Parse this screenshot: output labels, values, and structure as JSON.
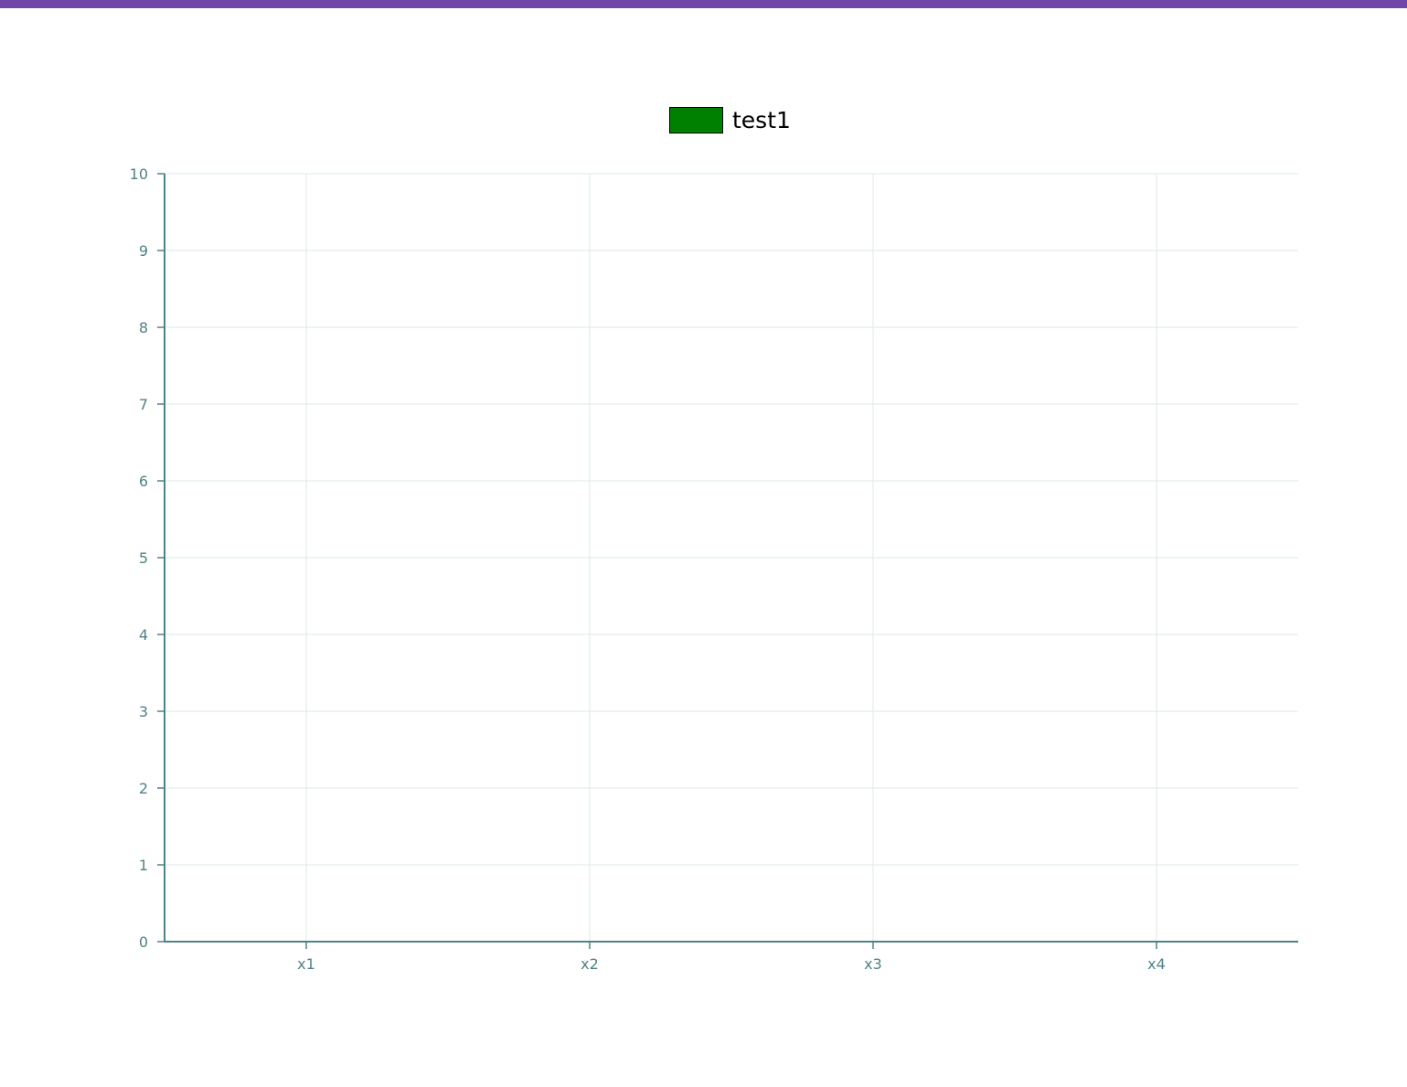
{
  "colors": {
    "top_bar": "#7046a8",
    "axis": "#4f8286",
    "grid": "#dde8e9",
    "tick_text": "#4f8286"
  },
  "chart_data": {
    "type": "bar",
    "categories": [
      "x1",
      "x2",
      "x3",
      "x4"
    ],
    "series": [
      {
        "name": "test1",
        "color": "#008000",
        "values": [
          0,
          0,
          0,
          0
        ]
      }
    ],
    "ylim": [
      0,
      10
    ],
    "yticks": [
      "0",
      "1",
      "2",
      "3",
      "4",
      "5",
      "6",
      "7",
      "8",
      "9",
      "10"
    ],
    "grid": true,
    "legend_position": "top-center"
  }
}
